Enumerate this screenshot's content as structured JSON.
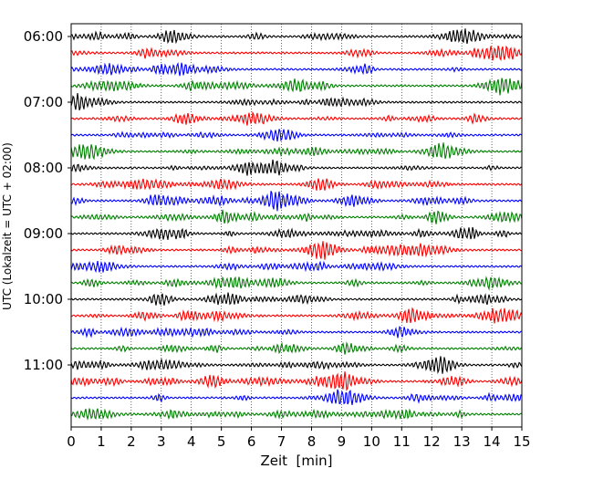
{
  "chart_data": {
    "type": "line",
    "title": "",
    "xlabel": "Zeit  [min]",
    "ylabel": "UTC (Lokalzeit = UTC + 02:00)",
    "x_range": [
      0,
      15
    ],
    "x_ticks": [
      0,
      1,
      2,
      3,
      4,
      5,
      6,
      7,
      8,
      9,
      10,
      11,
      12,
      13,
      14,
      15
    ],
    "y_tick_labels": [
      "06:00",
      "07:00",
      "08:00",
      "09:00",
      "10:00",
      "11:00"
    ],
    "y_tick_row_index": [
      0,
      4,
      8,
      12,
      16,
      20
    ],
    "row_minutes": 15,
    "rows": 24,
    "row_colors": [
      "#000000",
      "#ff0000",
      "#0000ff",
      "#008000"
    ],
    "vertical_grid": true,
    "grid_style": "dotted",
    "row_starts": [
      "06:00",
      "06:15",
      "06:30",
      "06:45",
      "07:00",
      "07:15",
      "07:30",
      "07:45",
      "08:00",
      "08:15",
      "08:30",
      "08:45",
      "09:00",
      "09:15",
      "09:30",
      "09:45",
      "10:00",
      "10:15",
      "10:30",
      "10:45",
      "11:00",
      "11:15",
      "11:30",
      "11:45"
    ]
  }
}
